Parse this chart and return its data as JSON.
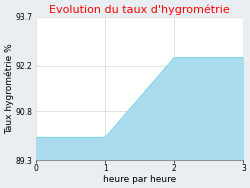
{
  "title": "Evolution du taux d'hygrométrie",
  "xlabel": "heure par heure",
  "ylabel": "Taux hygrométrie %",
  "x": [
    0,
    1,
    2,
    3
  ],
  "y": [
    90.0,
    90.0,
    92.45,
    92.45
  ],
  "ylim": [
    89.3,
    93.7
  ],
  "xlim": [
    0,
    3
  ],
  "yticks": [
    89.3,
    90.8,
    92.2,
    93.7
  ],
  "xticks": [
    0,
    1,
    2,
    3
  ],
  "line_color": "#7dd6e8",
  "fill_color": "#aadcee",
  "title_color": "#ff0000",
  "bg_color": "#e8eef2",
  "plot_bg_color": "#ffffff",
  "grid_color": "#cccccc",
  "title_fontsize": 8,
  "label_fontsize": 6.5,
  "tick_fontsize": 5.5
}
